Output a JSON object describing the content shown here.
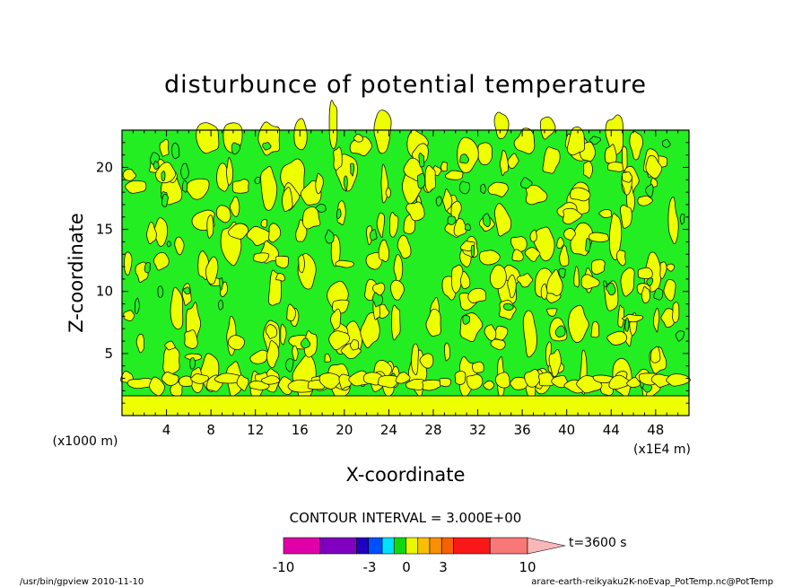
{
  "chart_data": {
    "type": "heatmap",
    "title": "disturbunce of potential temperature",
    "xlabel": "X-coordinate",
    "ylabel": "Z-coordinate",
    "x_scale_label": "(x1E4 m)",
    "y_scale_label": "(x1000 m)",
    "xlim": [
      0,
      51
    ],
    "ylim": [
      0,
      23
    ],
    "x_ticks": [
      4,
      8,
      12,
      16,
      20,
      24,
      28,
      32,
      36,
      40,
      44,
      48
    ],
    "y_ticks": [
      5,
      10,
      15,
      20
    ],
    "contour_interval_text": "CONTOUR INTERVAL = 3.000E+00",
    "time_text": "t=3600 s",
    "colorbar": {
      "tick_labels": [
        "-10",
        "-3",
        "0",
        "3",
        "10"
      ],
      "colors": [
        "#e000a8",
        "#8000c0",
        "#2000c0",
        "#0050ff",
        "#00e0ff",
        "#10d810",
        "#e8f800",
        "#f8c000",
        "#f89000",
        "#f86000",
        "#f81818",
        "#f87878",
        "#f8b8b8"
      ]
    },
    "field_colors": {
      "negative": "#22ee22",
      "positive": "#eeff00",
      "contour_line": "#111111"
    }
  },
  "footer": {
    "left": "/usr/bin/gpview  2010-11-10",
    "right": "arare-earth-reikyaku2K-noEvap_PotTemp.nc@PotTemp"
  }
}
